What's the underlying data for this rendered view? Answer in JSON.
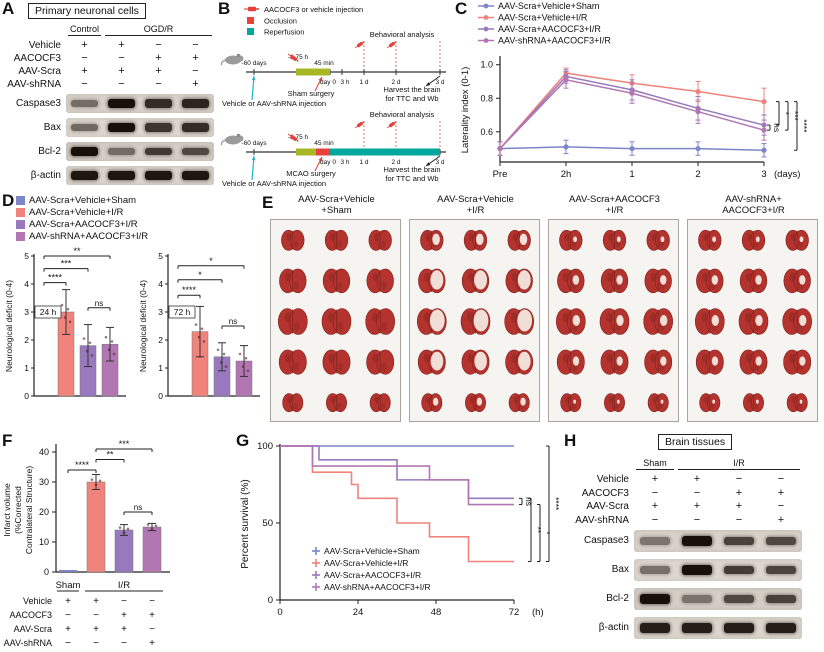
{
  "colors": {
    "sham": "#7d86c8",
    "ir": "#f0837b",
    "aacocf3": "#9879bd",
    "shrna": "#b277b2",
    "occlusion": "#e8403a",
    "reperfusion": "#00a79d",
    "surgery": "#aab724",
    "injection_arrow": "#19b6c9",
    "brain": "#b4332e",
    "infarct": "#f4ece4"
  },
  "panelA": {
    "letter": "A",
    "title": "Primary neuronal cells",
    "groups": [
      {
        "label": "Control",
        "lanes": 1
      },
      {
        "label": "OGD/R",
        "lanes": 3
      }
    ],
    "treatments": [
      {
        "label": "Vehicle",
        "signs": [
          "+",
          "+",
          "−",
          "−"
        ]
      },
      {
        "label": "AACOCF3",
        "signs": [
          "−",
          "−",
          "+",
          "+"
        ]
      },
      {
        "label": "AAV-Scra",
        "signs": [
          "+",
          "+",
          "+",
          "−"
        ]
      },
      {
        "label": "AAV-shRNA",
        "signs": [
          "−",
          "−",
          "−",
          "+"
        ]
      }
    ],
    "blots": [
      {
        "label": "Caspase3",
        "bands": [
          0.35,
          1.0,
          0.8,
          0.85
        ]
      },
      {
        "label": "Bax",
        "bands": [
          0.4,
          1.0,
          0.75,
          0.8
        ]
      },
      {
        "label": "Bcl-2",
        "bands": [
          1.0,
          0.35,
          0.7,
          0.6
        ]
      },
      {
        "label": "β-actin",
        "bands": [
          0.95,
          0.95,
          0.95,
          0.95
        ]
      }
    ]
  },
  "panelB": {
    "letter": "B",
    "legend": [
      {
        "type": "syringe",
        "label": "AACOCF3 or vehicle injection"
      },
      {
        "type": "swatch",
        "color": "occlusion",
        "label": "Occlusion"
      },
      {
        "type": "swatch",
        "color": "reperfusion",
        "label": "Reperfusion"
      }
    ],
    "tick_labels": [
      "-60 days",
      "-1.75 h",
      "45 min",
      "day 0",
      "3 h",
      "1 d",
      "2 d",
      "3 d"
    ],
    "timelines": [
      {
        "surgery": "Sham surgery",
        "injection": "Vehicle or AAV-shRNA injection",
        "behavior": "Behavioral analysis",
        "harvest": [
          "Harvest the brain",
          "for TTC and Wb"
        ],
        "reperfusion": false
      },
      {
        "surgery": "MCAO surgery",
        "injection": "Vehicle or AAV-shRNA injection",
        "behavior": "Behavioral analysis",
        "harvest": [
          "Harvest the brain",
          "for TTC and Wb"
        ],
        "reperfusion": true
      }
    ]
  },
  "panelC": {
    "letter": "C"
  },
  "panelD": {
    "letter": "D",
    "legend": [
      "AAV-Scra+Vehicle+Sham",
      "AAV-Scra+Vehicle+I/R",
      "AAV-Scra+AACOCF3+I/R",
      "AAV-shRNA+AACOCF3+I/R"
    ],
    "legend_colors": [
      "sham",
      "ir",
      "aacocf3",
      "shrna"
    ]
  },
  "panelE": {
    "letter": "E",
    "rows": 5,
    "cols": 3,
    "groups": [
      {
        "title": [
          "AAV-Scra+Vehicle",
          "+Sham"
        ],
        "infarct": 0
      },
      {
        "title": [
          "AAV-Scra+Vehicle",
          "+I/R"
        ],
        "infarct": 1.0
      },
      {
        "title": [
          "AAV-Scra+AACOCF3",
          "+I/R"
        ],
        "infarct": 0.5
      },
      {
        "title": [
          "AAV-shRNA+",
          "AACOCF3+I/R"
        ],
        "infarct": 0.5
      }
    ]
  },
  "panelF": {
    "letter": "F"
  },
  "panelG": {
    "letter": "G"
  },
  "panelH": {
    "letter": "H",
    "title": "Brain tissues",
    "groups": [
      {
        "label": "Sham",
        "lanes": 1
      },
      {
        "label": "I/R",
        "lanes": 3
      }
    ],
    "treatments": [
      {
        "label": "Vehicle",
        "signs": [
          "+",
          "+",
          "−",
          "−"
        ]
      },
      {
        "label": "AACOCF3",
        "signs": [
          "−",
          "−",
          "+",
          "+"
        ]
      },
      {
        "label": "AAV-Scra",
        "signs": [
          "+",
          "+",
          "+",
          "−"
        ]
      },
      {
        "label": "AAV-shRNA",
        "signs": [
          "−",
          "−",
          "−",
          "+"
        ]
      }
    ],
    "blots": [
      {
        "label": "Caspase3",
        "bands": [
          0.3,
          1.0,
          0.65,
          0.6
        ]
      },
      {
        "label": "Bax",
        "bands": [
          0.35,
          1.0,
          0.7,
          0.65
        ]
      },
      {
        "label": "Bcl-2",
        "bands": [
          1.0,
          0.3,
          0.6,
          0.65
        ]
      },
      {
        "label": "β-actin",
        "bands": [
          0.9,
          0.9,
          0.9,
          0.9
        ]
      }
    ]
  },
  "chart_data": [
    {
      "id": "C",
      "type": "line",
      "ylabel": "Laterality index (0-1)",
      "x_unit": "(days)",
      "categories": [
        "Pre",
        "2h",
        "1",
        "2",
        "3"
      ],
      "ylim": [
        0.42,
        1.04
      ],
      "yticks": [
        0.6,
        0.8,
        1.0
      ],
      "series": [
        {
          "name": "AAV-Scra+Vehicle+Sham",
          "color": "sham",
          "values": [
            0.5,
            0.51,
            0.5,
            0.5,
            0.49
          ],
          "errors": [
            0.04,
            0.04,
            0.04,
            0.04,
            0.04
          ]
        },
        {
          "name": "AAV-Scra+Vehicle+I/R",
          "color": "ir",
          "values": [
            0.5,
            0.95,
            0.89,
            0.84,
            0.78
          ],
          "errors": [
            0.04,
            0.03,
            0.05,
            0.06,
            0.08
          ]
        },
        {
          "name": "AAV-Scra+AACOCF3+I/R",
          "color": "aacocf3",
          "values": [
            0.5,
            0.93,
            0.85,
            0.74,
            0.64
          ],
          "errors": [
            0.04,
            0.04,
            0.06,
            0.07,
            0.06
          ]
        },
        {
          "name": "AAV-shRNA+AACOCF3+I/R",
          "color": "shrna",
          "values": [
            0.5,
            0.91,
            0.83,
            0.72,
            0.61
          ],
          "errors": [
            0.04,
            0.05,
            0.06,
            0.07,
            0.06
          ]
        }
      ],
      "sig": [
        {
          "label": "ns",
          "y1": 0.61,
          "y2": 0.64
        },
        {
          "label": "*",
          "y1": 0.64,
          "y2": 0.78
        },
        {
          "label": "***",
          "y1": 0.61,
          "y2": 0.78
        },
        {
          "label": "****",
          "y1": 0.49,
          "y2": 0.78
        }
      ]
    },
    {
      "id": "D24",
      "type": "bar",
      "badge": "24 h",
      "ylabel": "Neurological deficit (0-4)",
      "ylim": [
        0,
        5
      ],
      "yticks": [
        0,
        1,
        2,
        3,
        4,
        5
      ],
      "bars": [
        {
          "name": "AAV-Scra+Vehicle+Sham",
          "color": "sham",
          "value": 0,
          "error": 0
        },
        {
          "name": "AAV-Scra+Vehicle+I/R",
          "color": "ir",
          "value": 3.0,
          "error": 0.8
        },
        {
          "name": "AAV-Scra+AACOCF3+I/R",
          "color": "aacocf3",
          "value": 1.8,
          "error": 0.75
        },
        {
          "name": "AAV-shRNA+AACOCF3+I/R",
          "color": "shrna",
          "value": 1.85,
          "error": 0.6
        }
      ],
      "sig": [
        {
          "label": "****",
          "a": 0,
          "b": 1,
          "y": 4.05
        },
        {
          "label": "***",
          "a": 0,
          "b": 2,
          "y": 4.55
        },
        {
          "label": "**",
          "a": 0,
          "b": 3,
          "y": 5.0
        },
        {
          "label": "ns",
          "a": 2,
          "b": 3,
          "y": 3.15
        }
      ]
    },
    {
      "id": "D72",
      "type": "bar",
      "badge": "72 h",
      "ylabel": "Neurological deficit (0-4)",
      "ylim": [
        0,
        5
      ],
      "yticks": [
        0,
        1,
        2,
        3,
        4,
        5
      ],
      "bars": [
        {
          "name": "AAV-Scra+Vehicle+Sham",
          "color": "sham",
          "value": 0,
          "error": 0
        },
        {
          "name": "AAV-Scra+Vehicle+I/R",
          "color": "ir",
          "value": 2.3,
          "error": 0.9
        },
        {
          "name": "AAV-Scra+AACOCF3+I/R",
          "color": "aacocf3",
          "value": 1.4,
          "error": 0.5
        },
        {
          "name": "AAV-shRNA+AACOCF3+I/R",
          "color": "shrna",
          "value": 1.25,
          "error": 0.55
        }
      ],
      "sig": [
        {
          "label": "****",
          "a": 0,
          "b": 1,
          "y": 3.6
        },
        {
          "label": "*",
          "a": 0,
          "b": 2,
          "y": 4.15
        },
        {
          "label": "*",
          "a": 0,
          "b": 3,
          "y": 4.65
        },
        {
          "label": "ns",
          "a": 2,
          "b": 3,
          "y": 2.5
        }
      ]
    },
    {
      "id": "F",
      "type": "bar",
      "ylabel_lines": [
        "Infarct volume",
        "(%Corrected",
        "Contralateral Structure)"
      ],
      "ylim": [
        0,
        42
      ],
      "yticks": [
        0,
        10,
        20,
        30,
        40
      ],
      "bars": [
        {
          "name": "Sham+Vehicle+AAV-Scra",
          "color": "sham",
          "value": 0.4,
          "error": 0
        },
        {
          "name": "I/R+Vehicle+AAV-Scra",
          "color": "ir",
          "value": 30,
          "error": 2.5
        },
        {
          "name": "I/R+AACOCF3+AAV-Scra",
          "color": "aacocf3",
          "value": 14,
          "error": 1.8
        },
        {
          "name": "I/R+AACOCF3+AAV-shRNA",
          "color": "shrna",
          "value": 15,
          "error": 1.2
        }
      ],
      "sig": [
        {
          "label": "****",
          "a": 0,
          "b": 1,
          "y": 34
        },
        {
          "label": "**",
          "a": 1,
          "b": 2,
          "y": 37.5
        },
        {
          "label": "***",
          "a": 1,
          "b": 3,
          "y": 41
        },
        {
          "label": "ns",
          "a": 2,
          "b": 3,
          "y": 20
        }
      ],
      "matrix": {
        "groups": [
          {
            "label": "Sham",
            "lanes": 1
          },
          {
            "label": "I/R",
            "lanes": 3
          }
        ],
        "treatments": [
          {
            "label": "Vehicle",
            "signs": [
              "+",
              "+",
              "−",
              "−"
            ]
          },
          {
            "label": "AACOCF3",
            "signs": [
              "−",
              "−",
              "+",
              "+"
            ]
          },
          {
            "label": "AAV-Scra",
            "signs": [
              "+",
              "+",
              "+",
              "−"
            ]
          },
          {
            "label": "AAV-shRNA",
            "signs": [
              "−",
              "−",
              "−",
              "+"
            ]
          }
        ]
      }
    },
    {
      "id": "G",
      "type": "survival",
      "ylabel": "Percent survival (%)",
      "x_unit": "(h)",
      "ylim": [
        0,
        100
      ],
      "yticks": [
        0,
        50,
        100
      ],
      "xlim": [
        0,
        72
      ],
      "xticks": [
        0,
        24,
        48,
        72
      ],
      "series": [
        {
          "name": "AAV-Scra+Vehicle+Sham",
          "color": "sham",
          "steps": [
            [
              0,
              100
            ],
            [
              72,
              100
            ]
          ]
        },
        {
          "name": "AAV-Scra+Vehicle+I/R",
          "color": "ir",
          "steps": [
            [
              0,
              100
            ],
            [
              10,
              83
            ],
            [
              22,
              75
            ],
            [
              24,
              66
            ],
            [
              36,
              50
            ],
            [
              46,
              41
            ],
            [
              58,
              25
            ],
            [
              72,
              25
            ]
          ]
        },
        {
          "name": "AAV-Scra+AACOCF3+I/R",
          "color": "aacocf3",
          "steps": [
            [
              0,
              100
            ],
            [
              12,
              91
            ],
            [
              36,
              78
            ],
            [
              58,
              66
            ],
            [
              72,
              66
            ]
          ]
        },
        {
          "name": "AAV-shRNA+AACOCF3+I/R",
          "color": "shrna",
          "steps": [
            [
              0,
              100
            ],
            [
              10,
              87
            ],
            [
              46,
              78
            ],
            [
              58,
              62
            ],
            [
              72,
              62
            ]
          ]
        }
      ],
      "sig": [
        {
          "label": "ns",
          "y1": 62,
          "y2": 66
        },
        {
          "label": "**",
          "y1": 25,
          "y2": 66
        },
        {
          "label": "*",
          "y1": 25,
          "y2": 62
        },
        {
          "label": "****",
          "y1": 25,
          "y2": 100
        }
      ]
    }
  ]
}
